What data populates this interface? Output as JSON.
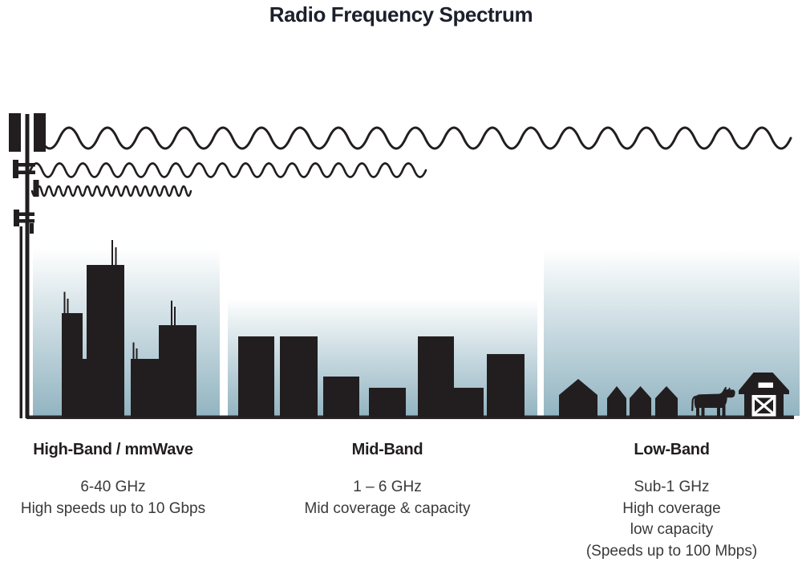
{
  "title": "Radio Frequency Spectrum",
  "colors": {
    "ink": "#221e1f",
    "title_text": "#1b202b",
    "body_text": "#3a3a3a",
    "ground": "#2b2728",
    "sky_top": "#ffffff",
    "sky_mid": "#dde8ec",
    "sky_bottom": "#92b4c1"
  },
  "icons": [
    "cell-tower-icon",
    "low-band-wave-icon",
    "mid-band-wave-icon",
    "high-band-wave-icon",
    "city-skyline-icon",
    "town-buildings-icon",
    "village-houses-icon",
    "cow-icon",
    "barn-icon"
  ],
  "bands": [
    {
      "name": "High-Band / mmWave",
      "lines": [
        "6-40 GHz",
        "High speeds up to 10 Gbps"
      ]
    },
    {
      "name": "Mid-Band",
      "lines": [
        "1 – 6 GHz",
        "Mid coverage & capacity"
      ]
    },
    {
      "name": "Low-Band",
      "lines": [
        "Sub-1 GHz",
        "High coverage",
        "low capacity",
        "(Speeds up to 100 Mbps)"
      ]
    }
  ]
}
